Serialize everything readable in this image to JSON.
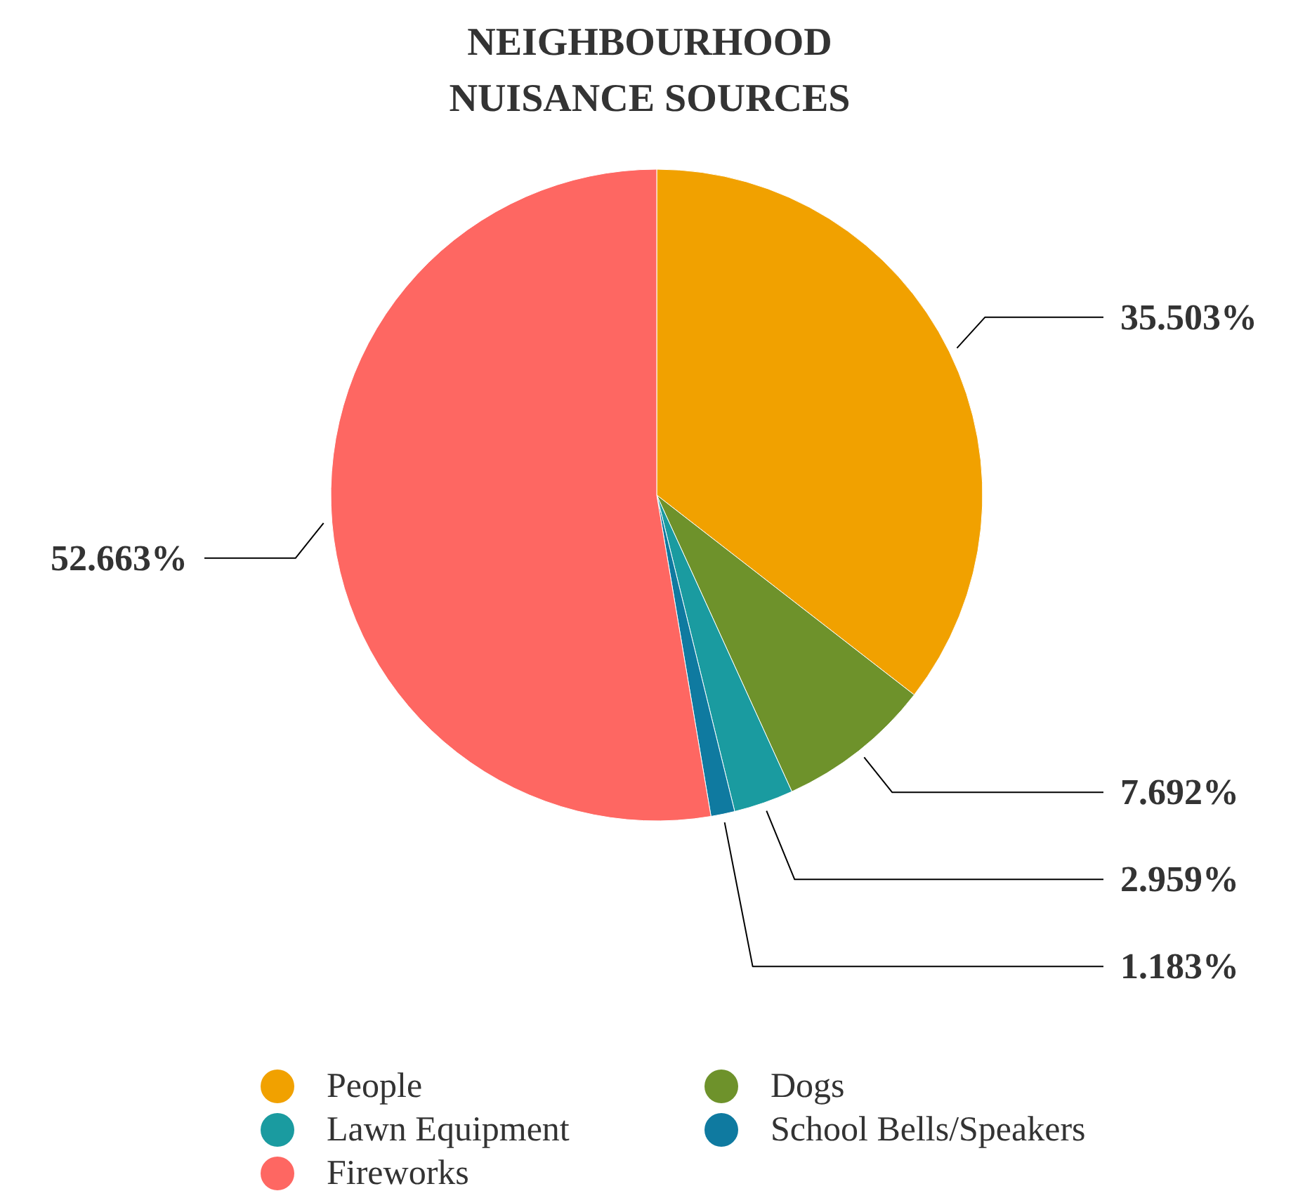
{
  "chart_data": {
    "type": "pie",
    "title": "NEIGHBOURHOOD NUISANCE SOURCES",
    "categories": [
      "People",
      "Dogs",
      "Lawn Equipment",
      "School Bells/Speakers",
      "Fireworks"
    ],
    "values": [
      35.503,
      7.692,
      2.959,
      1.183,
      52.663
    ],
    "colors": [
      "#f1a100",
      "#6e922b",
      "#1a9ba0",
      "#0f7aa0",
      "#fe6762"
    ],
    "value_labels": [
      "35.503%",
      "7.692%",
      "2.959%",
      "1.183%",
      "52.663%"
    ],
    "legend": "bottom"
  }
}
